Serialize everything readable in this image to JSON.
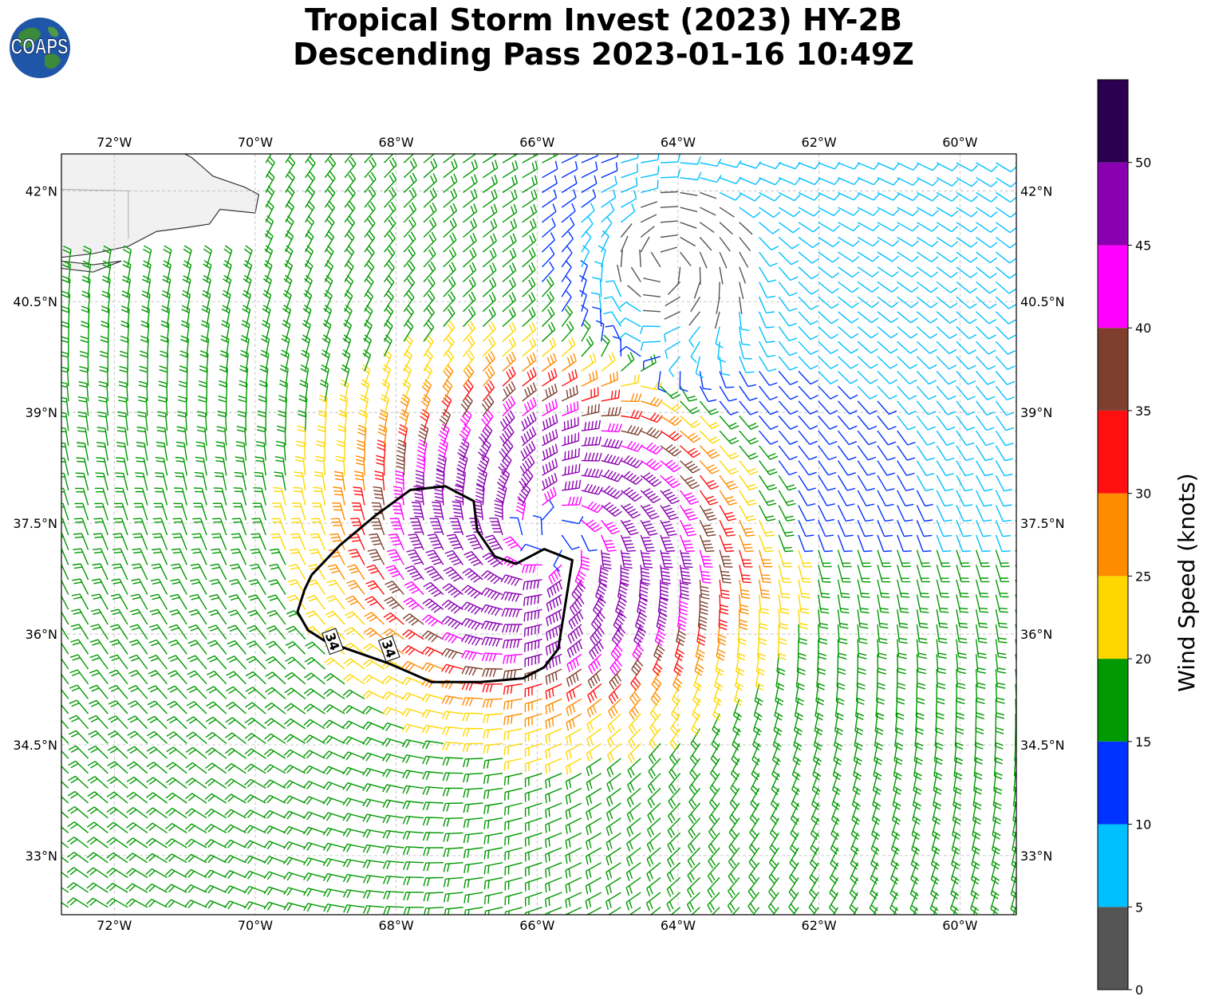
{
  "title": {
    "line1": "Tropical Storm Invest (2023) HY-2B",
    "line2": "Descending Pass 2023-01-16 10:49Z"
  },
  "logo": {
    "text": "COAPS"
  },
  "map": {
    "lon_range": [
      -72.75,
      -59.2
    ],
    "lat_range": [
      32.2,
      42.5
    ],
    "lon_ticks": [
      {
        "value": -72,
        "label": "72°W"
      },
      {
        "value": -70,
        "label": "70°W"
      },
      {
        "value": -68,
        "label": "68°W"
      },
      {
        "value": -66,
        "label": "66°W"
      },
      {
        "value": -64,
        "label": "64°W"
      },
      {
        "value": -62,
        "label": "62°W"
      },
      {
        "value": -60,
        "label": "60°W"
      }
    ],
    "lat_ticks": [
      {
        "value": 42,
        "label": "42°N"
      },
      {
        "value": 40.5,
        "label": "40.5°N"
      },
      {
        "value": 39,
        "label": "39°N"
      },
      {
        "value": 37.5,
        "label": "37.5°N"
      },
      {
        "value": 36,
        "label": "36°N"
      },
      {
        "value": 34.5,
        "label": "34.5°N"
      },
      {
        "value": 33,
        "label": "33°N"
      }
    ],
    "gridlines": true,
    "storm_center": {
      "lon": -65.8,
      "lat": 37.3
    },
    "contour_label": "34",
    "contour_labels_at": [
      {
        "lon": -68.9,
        "lat": 35.9
      },
      {
        "lon": -68.1,
        "lat": 35.8
      }
    ],
    "contour_34kt": [
      [
        -69.2,
        36.8
      ],
      [
        -68.8,
        37.2
      ],
      [
        -68.3,
        37.6
      ],
      [
        -67.8,
        37.95
      ],
      [
        -67.3,
        38.0
      ],
      [
        -66.9,
        37.8
      ],
      [
        -66.85,
        37.4
      ],
      [
        -66.6,
        37.05
      ],
      [
        -66.3,
        36.95
      ],
      [
        -65.9,
        37.15
      ],
      [
        -65.5,
        37.0
      ],
      [
        -65.6,
        36.4
      ],
      [
        -65.7,
        35.8
      ],
      [
        -65.9,
        35.55
      ],
      [
        -66.2,
        35.4
      ],
      [
        -66.8,
        35.35
      ],
      [
        -67.5,
        35.35
      ],
      [
        -68.1,
        35.6
      ],
      [
        -68.7,
        35.8
      ],
      [
        -69.0,
        35.9
      ],
      [
        -69.25,
        36.05
      ],
      [
        -69.4,
        36.3
      ],
      [
        -69.3,
        36.6
      ],
      [
        -69.2,
        36.8
      ]
    ],
    "coastline": [
      [
        -72.75,
        41.1
      ],
      [
        -72.3,
        41.15
      ],
      [
        -71.8,
        41.25
      ],
      [
        -71.4,
        41.45
      ],
      [
        -71.0,
        41.5
      ],
      [
        -70.65,
        41.55
      ],
      [
        -70.5,
        41.75
      ],
      [
        -70.0,
        41.7
      ],
      [
        -69.95,
        41.95
      ],
      [
        -70.15,
        42.05
      ],
      [
        -70.6,
        42.2
      ],
      [
        -70.9,
        42.45
      ],
      [
        -71.0,
        42.5
      ]
    ],
    "long_island": [
      [
        -72.75,
        40.95
      ],
      [
        -72.3,
        40.9
      ],
      [
        -71.9,
        41.05
      ],
      [
        -72.3,
        41.0
      ],
      [
        -72.75,
        41.05
      ]
    ]
  },
  "colorbar": {
    "label": "Wind Speed (knots)",
    "bounds": [
      0,
      5,
      10,
      15,
      20,
      25,
      30,
      35,
      40,
      45,
      50,
      55
    ],
    "tick_values": [
      0,
      5,
      10,
      15,
      20,
      25,
      30,
      35,
      40,
      45,
      50
    ],
    "tick_labels": [
      "0",
      "5",
      "10",
      "15",
      "20",
      "25",
      "30",
      "35",
      "40",
      "45",
      "50"
    ],
    "colors": [
      "#555555",
      "#00bfff",
      "#0033ff",
      "#009900",
      "#ffd700",
      "#ff8c00",
      "#ff1010",
      "#7f3f2f",
      "#ff00ff",
      "#8a00b0",
      "#2b0050"
    ]
  },
  "wind_field": {
    "grid_step_deg": 0.28,
    "bermuda_label": ""
  }
}
